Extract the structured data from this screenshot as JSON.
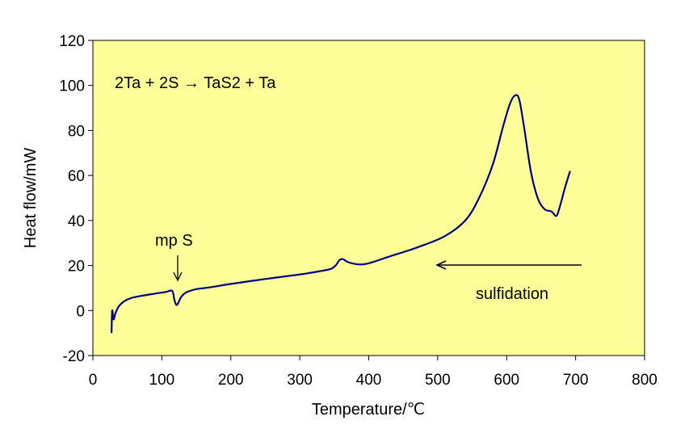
{
  "chart_data": {
    "type": "line",
    "xlabel": "Temperature/℃",
    "ylabel": "Heat flow/mW",
    "xlim": [
      0,
      800
    ],
    "ylim": [
      -20,
      120
    ],
    "x_ticks": [
      "0",
      "100",
      "200",
      "300",
      "400",
      "500",
      "600",
      "700",
      "800"
    ],
    "y_ticks": [
      "-20",
      "0",
      "20",
      "40",
      "60",
      "80",
      "100",
      "120"
    ],
    "grid": false,
    "legend": "none",
    "plot_background": "#FFFF99",
    "line_color": "#000080",
    "annotations": {
      "equation": "2Ta + 2S → TaS2 + Ta",
      "mp_label": "mp S",
      "arrow_label": "sulfidation"
    },
    "series": [
      {
        "points": [
          [
            27,
            -10
          ],
          [
            28,
            0
          ],
          [
            30,
            -4
          ],
          [
            33,
            -1
          ],
          [
            38,
            2
          ],
          [
            45,
            4
          ],
          [
            55,
            5.5
          ],
          [
            70,
            6.5
          ],
          [
            90,
            7.5
          ],
          [
            105,
            8.2
          ],
          [
            115,
            8.7
          ],
          [
            118,
            5
          ],
          [
            121,
            2.5
          ],
          [
            124,
            3.5
          ],
          [
            128,
            6
          ],
          [
            135,
            8
          ],
          [
            150,
            9.5
          ],
          [
            170,
            10.3
          ],
          [
            200,
            11.8
          ],
          [
            250,
            14
          ],
          [
            300,
            16
          ],
          [
            330,
            17.5
          ],
          [
            345,
            18.5
          ],
          [
            352,
            20
          ],
          [
            358,
            22.5
          ],
          [
            363,
            22.8
          ],
          [
            370,
            21.5
          ],
          [
            385,
            20.5
          ],
          [
            400,
            21
          ],
          [
            430,
            24
          ],
          [
            470,
            28
          ],
          [
            510,
            33
          ],
          [
            540,
            40
          ],
          [
            560,
            50
          ],
          [
            580,
            65
          ],
          [
            595,
            82
          ],
          [
            605,
            92
          ],
          [
            612,
            95.5
          ],
          [
            618,
            94
          ],
          [
            625,
            82
          ],
          [
            635,
            62
          ],
          [
            645,
            50
          ],
          [
            655,
            45
          ],
          [
            665,
            44
          ],
          [
            672,
            42
          ],
          [
            677,
            46
          ],
          [
            685,
            55
          ],
          [
            692,
            62
          ]
        ]
      }
    ]
  }
}
